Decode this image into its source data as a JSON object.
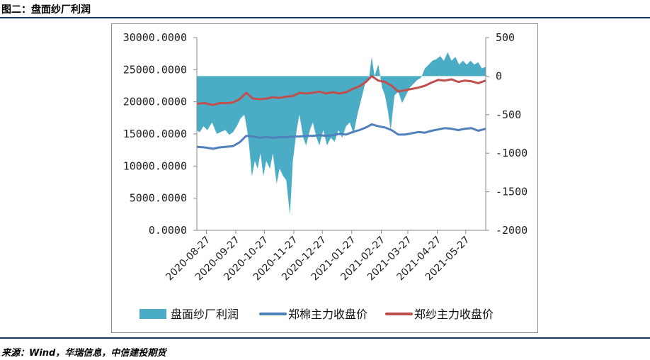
{
  "figure": {
    "title": "图二：盘面纱厂利润",
    "source": "来源：Wind，华瑞信息，中信建投期货"
  },
  "chart_data": {
    "type": "line",
    "left_axis": {
      "ylim": [
        0,
        30000
      ],
      "ticks": [
        "0.0000",
        "5000.0000",
        "10000.0000",
        "15000.0000",
        "20000.0000",
        "25000.0000",
        "30000.0000"
      ]
    },
    "right_axis": {
      "ylim": [
        -2000,
        500
      ],
      "ticks": [
        "-2000",
        "-1500",
        "-1000",
        "-500",
        "0",
        "500"
      ]
    },
    "x_tick_labels": [
      "2020-08-27",
      "2020-09-27",
      "2020-10-27",
      "2020-11-27",
      "2020-12-27",
      "2021-01-27",
      "2021-02-27",
      "2021-03-27",
      "2021-04-27",
      "2021-05-27"
    ],
    "x_range": [
      "2020-08-17",
      "2021-06-17"
    ],
    "legend_position": "bottom",
    "series": [
      {
        "name": "盘面纱厂利润",
        "kind": "area",
        "axis": "right",
        "color": "#4bacc6",
        "points": [
          [
            "2020-08-17",
            -700
          ],
          [
            "2020-08-20",
            -730
          ],
          [
            "2020-08-24",
            -650
          ],
          [
            "2020-08-28",
            -700
          ],
          [
            "2020-09-02",
            -600
          ],
          [
            "2020-09-07",
            -750
          ],
          [
            "2020-09-12",
            -720
          ],
          [
            "2020-09-16",
            -700
          ],
          [
            "2020-09-20",
            -760
          ],
          [
            "2020-09-24",
            -730
          ],
          [
            "2020-09-28",
            -650
          ],
          [
            "2020-10-02",
            -550
          ],
          [
            "2020-10-06",
            -500
          ],
          [
            "2020-10-09",
            -700
          ],
          [
            "2020-10-11",
            -900
          ],
          [
            "2020-10-14",
            -1300
          ],
          [
            "2020-10-17",
            -1100
          ],
          [
            "2020-10-20",
            -1200
          ],
          [
            "2020-10-23",
            -1000
          ],
          [
            "2020-10-26",
            -1300
          ],
          [
            "2020-10-29",
            -1100
          ],
          [
            "2020-11-02",
            -1200
          ],
          [
            "2020-11-05",
            -1000
          ],
          [
            "2020-11-09",
            -1400
          ],
          [
            "2020-11-12",
            -1200
          ],
          [
            "2020-11-16",
            -1300
          ],
          [
            "2020-11-19",
            -1350
          ],
          [
            "2020-11-23",
            -1800
          ],
          [
            "2020-11-26",
            -1100
          ],
          [
            "2020-11-30",
            -700
          ],
          [
            "2020-12-03",
            -500
          ],
          [
            "2020-12-07",
            -800
          ],
          [
            "2020-12-10",
            -900
          ],
          [
            "2020-12-14",
            -700
          ],
          [
            "2020-12-17",
            -600
          ],
          [
            "2020-12-21",
            -800
          ],
          [
            "2020-12-24",
            -900
          ],
          [
            "2020-12-28",
            -700
          ],
          [
            "2021-01-01",
            -900
          ],
          [
            "2021-01-05",
            -800
          ],
          [
            "2021-01-09",
            -850
          ],
          [
            "2021-01-13",
            -700
          ],
          [
            "2021-01-17",
            -800
          ],
          [
            "2021-01-21",
            -650
          ],
          [
            "2021-01-25",
            -600
          ],
          [
            "2021-01-29",
            -750
          ],
          [
            "2021-02-02",
            -500
          ],
          [
            "2021-02-06",
            -300
          ],
          [
            "2021-02-10",
            -100
          ],
          [
            "2021-02-14",
            -50
          ],
          [
            "2021-02-17",
            250
          ],
          [
            "2021-02-20",
            0
          ],
          [
            "2021-02-24",
            150
          ],
          [
            "2021-02-28",
            -150
          ],
          [
            "2021-03-03",
            -250
          ],
          [
            "2021-03-06",
            -450
          ],
          [
            "2021-03-09",
            -700
          ],
          [
            "2021-03-13",
            -250
          ],
          [
            "2021-03-17",
            -200
          ],
          [
            "2021-03-21",
            -350
          ],
          [
            "2021-03-25",
            -250
          ],
          [
            "2021-03-29",
            -150
          ],
          [
            "2021-04-02",
            -100
          ],
          [
            "2021-04-06",
            -50
          ],
          [
            "2021-04-10",
            -20
          ],
          [
            "2021-04-14",
            100
          ],
          [
            "2021-04-18",
            150
          ],
          [
            "2021-04-22",
            200
          ],
          [
            "2021-04-26",
            220
          ],
          [
            "2021-04-30",
            260
          ],
          [
            "2021-05-04",
            200
          ],
          [
            "2021-05-08",
            310
          ],
          [
            "2021-05-12",
            200
          ],
          [
            "2021-05-16",
            250
          ],
          [
            "2021-05-20",
            150
          ],
          [
            "2021-05-24",
            200
          ],
          [
            "2021-05-28",
            150
          ],
          [
            "2021-06-01",
            200
          ],
          [
            "2021-06-05",
            150
          ],
          [
            "2021-06-09",
            180
          ],
          [
            "2021-06-13",
            100
          ],
          [
            "2021-06-17",
            120
          ]
        ]
      },
      {
        "name": "郑棉主力收盘价",
        "kind": "line",
        "axis": "left",
        "color": "#4f81bd",
        "points": [
          [
            "2020-08-17",
            13000
          ],
          [
            "2020-08-25",
            12900
          ],
          [
            "2020-09-03",
            12700
          ],
          [
            "2020-09-10",
            12900
          ],
          [
            "2020-09-17",
            13000
          ],
          [
            "2020-09-24",
            13100
          ],
          [
            "2020-10-01",
            13700
          ],
          [
            "2020-10-08",
            14700
          ],
          [
            "2020-10-15",
            14600
          ],
          [
            "2020-10-22",
            14400
          ],
          [
            "2020-10-29",
            14500
          ],
          [
            "2020-11-05",
            14400
          ],
          [
            "2020-11-12",
            14500
          ],
          [
            "2020-11-19",
            14500
          ],
          [
            "2020-11-26",
            14600
          ],
          [
            "2020-12-03",
            14600
          ],
          [
            "2020-12-10",
            14700
          ],
          [
            "2020-12-17",
            14700
          ],
          [
            "2020-12-24",
            14800
          ],
          [
            "2020-12-31",
            14700
          ],
          [
            "2021-01-07",
            14800
          ],
          [
            "2021-01-14",
            15000
          ],
          [
            "2021-01-21",
            14900
          ],
          [
            "2021-01-28",
            15300
          ],
          [
            "2021-02-04",
            15600
          ],
          [
            "2021-02-11",
            16000
          ],
          [
            "2021-02-17",
            16500
          ],
          [
            "2021-02-24",
            16200
          ],
          [
            "2021-03-03",
            16000
          ],
          [
            "2021-03-10",
            15600
          ],
          [
            "2021-03-17",
            14900
          ],
          [
            "2021-03-24",
            14900
          ],
          [
            "2021-03-31",
            15100
          ],
          [
            "2021-04-07",
            15300
          ],
          [
            "2021-04-14",
            15200
          ],
          [
            "2021-04-21",
            15500
          ],
          [
            "2021-04-28",
            15700
          ],
          [
            "2021-05-05",
            15900
          ],
          [
            "2021-05-12",
            15800
          ],
          [
            "2021-05-19",
            15600
          ],
          [
            "2021-05-26",
            15800
          ],
          [
            "2021-06-02",
            15900
          ],
          [
            "2021-06-09",
            15500
          ],
          [
            "2021-06-17",
            15800
          ]
        ]
      },
      {
        "name": "郑纱主力收盘价",
        "kind": "line",
        "axis": "left",
        "color": "#c0504d",
        "points": [
          [
            "2020-08-17",
            19700
          ],
          [
            "2020-08-25",
            19800
          ],
          [
            "2020-09-03",
            19500
          ],
          [
            "2020-09-10",
            19800
          ],
          [
            "2020-09-17",
            19800
          ],
          [
            "2020-09-24",
            19900
          ],
          [
            "2020-10-01",
            20400
          ],
          [
            "2020-10-08",
            21400
          ],
          [
            "2020-10-15",
            20500
          ],
          [
            "2020-10-22",
            20400
          ],
          [
            "2020-10-29",
            20500
          ],
          [
            "2020-11-05",
            20700
          ],
          [
            "2020-11-12",
            20600
          ],
          [
            "2020-11-19",
            20800
          ],
          [
            "2020-11-26",
            20900
          ],
          [
            "2020-12-03",
            21400
          ],
          [
            "2020-12-10",
            21300
          ],
          [
            "2020-12-17",
            21400
          ],
          [
            "2020-12-24",
            21600
          ],
          [
            "2020-12-31",
            21300
          ],
          [
            "2021-01-07",
            21500
          ],
          [
            "2021-01-14",
            21300
          ],
          [
            "2021-01-21",
            21500
          ],
          [
            "2021-01-28",
            22000
          ],
          [
            "2021-02-04",
            22400
          ],
          [
            "2021-02-11",
            23100
          ],
          [
            "2021-02-17",
            24000
          ],
          [
            "2021-02-24",
            23300
          ],
          [
            "2021-03-03",
            23100
          ],
          [
            "2021-03-10",
            22500
          ],
          [
            "2021-03-17",
            21600
          ],
          [
            "2021-03-24",
            21800
          ],
          [
            "2021-03-31",
            22000
          ],
          [
            "2021-04-07",
            22200
          ],
          [
            "2021-04-14",
            22500
          ],
          [
            "2021-04-21",
            23000
          ],
          [
            "2021-04-28",
            23400
          ],
          [
            "2021-05-05",
            23300
          ],
          [
            "2021-05-12",
            23500
          ],
          [
            "2021-05-19",
            23100
          ],
          [
            "2021-05-26",
            23300
          ],
          [
            "2021-06-02",
            23200
          ],
          [
            "2021-06-09",
            22900
          ],
          [
            "2021-06-17",
            23300
          ]
        ]
      }
    ]
  }
}
